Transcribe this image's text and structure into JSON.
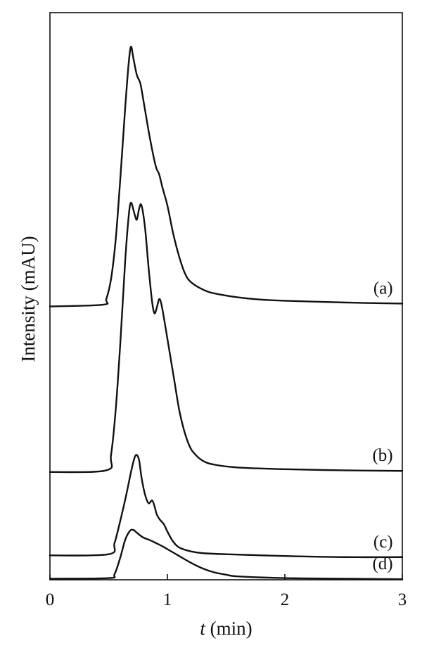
{
  "chart_data": {
    "type": "line",
    "title": "",
    "xlabel_italic": "t",
    "xlabel_rest": " (min)",
    "ylabel": "Intensity (mAU)",
    "xlim": [
      0,
      3
    ],
    "ylim": [
      0,
      100
    ],
    "x_ticks": [
      "0",
      "1",
      "2",
      "3"
    ],
    "grid": false,
    "legend": "none",
    "series": [
      {
        "name": "(a)",
        "x": [
          0,
          0.45,
          0.48,
          0.52,
          0.56,
          0.6,
          0.64,
          0.67,
          0.69,
          0.71,
          0.74,
          0.77,
          0.8,
          0.85,
          0.9,
          0.93,
          0.96,
          1.0,
          1.05,
          1.1,
          1.15,
          1.2,
          1.3,
          1.4,
          1.6,
          1.8,
          2.0,
          2.5,
          3.0
        ],
        "y": [
          48.2,
          48.5,
          49.5,
          53.0,
          60.0,
          71.0,
          83.0,
          91.0,
          94.0,
          92.0,
          89.0,
          87.5,
          84.0,
          78.0,
          73.0,
          71.5,
          69.0,
          66.0,
          61.0,
          57.0,
          54.0,
          52.5,
          51.2,
          50.5,
          49.8,
          49.4,
          49.2,
          48.9,
          48.7
        ]
      },
      {
        "name": "(b)",
        "x": [
          0,
          0.48,
          0.52,
          0.56,
          0.6,
          0.64,
          0.67,
          0.69,
          0.72,
          0.74,
          0.76,
          0.78,
          0.81,
          0.84,
          0.87,
          0.89,
          0.91,
          0.93,
          0.95,
          0.98,
          1.02,
          1.06,
          1.1,
          1.14,
          1.18,
          1.22,
          1.3,
          1.4,
          1.6,
          2.0,
          2.5,
          3.0
        ],
        "y": [
          19.0,
          19.3,
          22.0,
          30.0,
          42.0,
          56.0,
          64.0,
          66.5,
          64.5,
          63.5,
          65.5,
          66.0,
          62.0,
          55.0,
          49.0,
          47.0,
          48.0,
          49.5,
          48.5,
          45.0,
          40.0,
          35.0,
          30.0,
          26.5,
          24.0,
          22.5,
          21.0,
          20.3,
          19.8,
          19.5,
          19.3,
          19.2
        ]
      },
      {
        "name": "(c)",
        "x": [
          0,
          0.5,
          0.55,
          0.6,
          0.65,
          0.69,
          0.72,
          0.74,
          0.76,
          0.78,
          0.81,
          0.84,
          0.87,
          0.89,
          0.91,
          0.94,
          0.97,
          1.0,
          1.04,
          1.08,
          1.12,
          1.2,
          1.3,
          1.5,
          2.0,
          2.5,
          3.0
        ],
        "y": [
          4.3,
          4.5,
          6.5,
          10.5,
          15.0,
          19.0,
          21.5,
          22.0,
          21.0,
          18.0,
          15.0,
          13.5,
          14.0,
          13.0,
          11.5,
          10.5,
          9.8,
          8.5,
          7.0,
          6.0,
          5.5,
          5.0,
          4.7,
          4.5,
          4.2,
          4.0,
          4.0
        ]
      },
      {
        "name": "(d)",
        "x": [
          0,
          0.5,
          0.55,
          0.6,
          0.64,
          0.68,
          0.71,
          0.74,
          0.77,
          0.8,
          0.85,
          0.9,
          0.95,
          1.0,
          1.1,
          1.2,
          1.3,
          1.4,
          1.5,
          1.6,
          2.0,
          2.5,
          3.0
        ],
        "y": [
          0.2,
          0.3,
          1.0,
          4.0,
          7.0,
          8.6,
          8.8,
          8.3,
          7.8,
          7.4,
          7.0,
          6.5,
          6.0,
          5.4,
          4.2,
          3.0,
          2.0,
          1.3,
          0.9,
          0.6,
          0.3,
          0.2,
          0.1
        ]
      }
    ]
  }
}
